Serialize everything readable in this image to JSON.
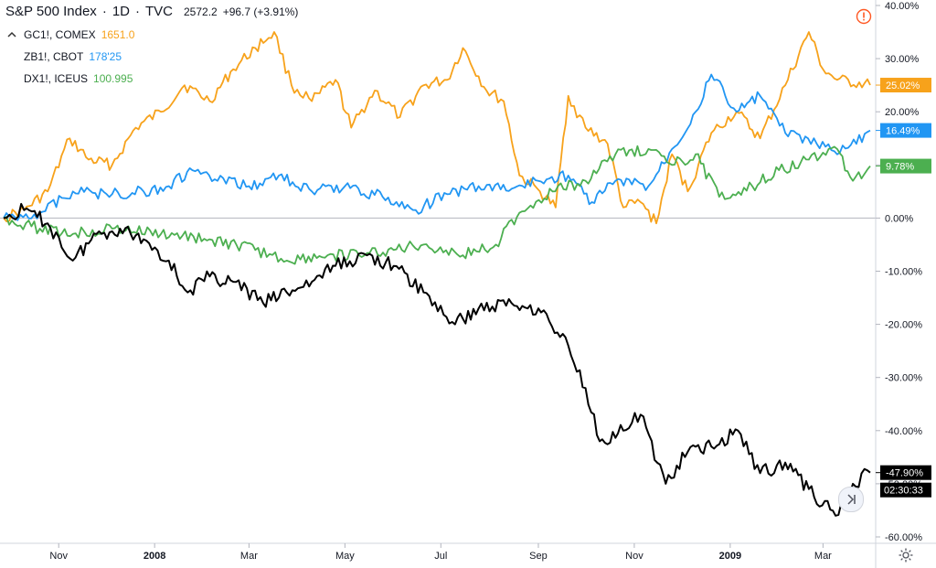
{
  "header": {
    "symbol": "S&P 500 Index",
    "interval": "1D",
    "exchange": "TVC",
    "sep": "·",
    "last": "2572.2",
    "change": "+96.7 (+3.91%)"
  },
  "legend": [
    {
      "name": "GC1!, COMEX",
      "value": "1651.0",
      "color": "#f7a21b"
    },
    {
      "name": "ZB1!, CBOT",
      "value": "178'25",
      "color": "#2196f3"
    },
    {
      "name": "DX1!, ICEUS",
      "value": "100.995",
      "color": "#4caf50"
    }
  ],
  "collapse_icon": "chevron-up-icon",
  "axis_tags": [
    {
      "text": "25.02%",
      "value": 25.02,
      "bg": "#f7a21b",
      "fg": "#131722"
    },
    {
      "text": "16.49%",
      "value": 16.49,
      "bg": "#2196f3",
      "fg": "#ffffff"
    },
    {
      "text": "9.78%",
      "value": 9.78,
      "bg": "#4caf50",
      "fg": "#ffffff"
    },
    {
      "text": "-47.90%",
      "value": -47.9,
      "bg": "#000000",
      "fg": "#ffffff"
    }
  ],
  "countdown": "02:30:33",
  "chart_data": {
    "type": "line",
    "yaxis_side": "right",
    "y_unit": "%",
    "ylim": [
      -61,
      41
    ],
    "yticks": [
      40,
      30,
      20,
      10,
      0,
      -10,
      -20,
      -30,
      -40,
      -50,
      -60
    ],
    "ytick_labels": [
      "40.00%",
      "30.00%",
      "20.00%",
      "10.00%",
      "0.00%",
      "-10.00%",
      "-20.00%",
      "-30.00%",
      "-40.00%",
      "-50.00%",
      "-60.00%"
    ],
    "xlim": [
      "2007-09-27",
      "2009-03-31"
    ],
    "xticks": [
      {
        "label": "Nov",
        "date": "2007-11-01"
      },
      {
        "label": "2008",
        "date": "2008-01-01"
      },
      {
        "label": "Mar",
        "date": "2008-03-01"
      },
      {
        "label": "May",
        "date": "2008-05-01"
      },
      {
        "label": "Jul",
        "date": "2008-07-01"
      },
      {
        "label": "Sep",
        "date": "2008-09-01"
      },
      {
        "label": "Nov",
        "date": "2008-11-01"
      },
      {
        "label": "2009",
        "date": "2009-01-01"
      },
      {
        "label": "Mar",
        "date": "2009-03-01"
      }
    ],
    "zero_line": true,
    "series": [
      {
        "name": "GC1!, COMEX",
        "color": "#f7a21b",
        "points": [
          [
            "2007-09-27",
            0
          ],
          [
            "2007-10-10",
            1.5
          ],
          [
            "2007-10-25",
            5.0
          ],
          [
            "2007-11-08",
            15.0
          ],
          [
            "2007-11-20",
            11.0
          ],
          [
            "2007-12-05",
            10.0
          ],
          [
            "2007-12-20",
            17.0
          ],
          [
            "2008-01-05",
            20.0
          ],
          [
            "2008-01-20",
            25.0
          ],
          [
            "2008-02-05",
            22.0
          ],
          [
            "2008-02-20",
            28.0
          ],
          [
            "2008-03-05",
            32.0
          ],
          [
            "2008-03-17",
            35.0
          ],
          [
            "2008-03-28",
            25.0
          ],
          [
            "2008-04-10",
            22.0
          ],
          [
            "2008-04-25",
            26.0
          ],
          [
            "2008-05-05",
            17.0
          ],
          [
            "2008-05-20",
            24.0
          ],
          [
            "2008-06-05",
            19.0
          ],
          [
            "2008-06-20",
            25.0
          ],
          [
            "2008-07-05",
            26.0
          ],
          [
            "2008-07-15",
            32.0
          ],
          [
            "2008-07-30",
            24.0
          ],
          [
            "2008-08-10",
            22.0
          ],
          [
            "2008-08-20",
            8.0
          ],
          [
            "2008-09-02",
            5.0
          ],
          [
            "2008-09-12",
            2.0
          ],
          [
            "2008-09-20",
            23.0
          ],
          [
            "2008-10-01",
            17.0
          ],
          [
            "2008-10-15",
            14.0
          ],
          [
            "2008-10-25",
            2.0
          ],
          [
            "2008-11-05",
            3.0
          ],
          [
            "2008-11-15",
            -1.0
          ],
          [
            "2008-11-25",
            12.0
          ],
          [
            "2008-12-05",
            5.0
          ],
          [
            "2008-12-20",
            16.0
          ],
          [
            "2009-01-05",
            20.0
          ],
          [
            "2009-01-20",
            15.0
          ],
          [
            "2009-02-05",
            25.0
          ],
          [
            "2009-02-20",
            35.0
          ],
          [
            "2009-03-01",
            28.0
          ],
          [
            "2009-03-10",
            26.0
          ],
          [
            "2009-03-31",
            25.02
          ]
        ]
      },
      {
        "name": "ZB1!, CBOT",
        "color": "#2196f3",
        "points": [
          [
            "2007-09-27",
            0
          ],
          [
            "2007-10-20",
            1.0
          ],
          [
            "2007-11-10",
            5.0
          ],
          [
            "2007-12-05",
            4.5
          ],
          [
            "2007-12-25",
            5.0
          ],
          [
            "2008-01-10",
            6.0
          ],
          [
            "2008-01-25",
            9.0
          ],
          [
            "2008-02-10",
            7.0
          ],
          [
            "2008-03-01",
            6.0
          ],
          [
            "2008-03-20",
            8.0
          ],
          [
            "2008-04-10",
            5.0
          ],
          [
            "2008-05-01",
            6.0
          ],
          [
            "2008-05-25",
            4.0
          ],
          [
            "2008-06-15",
            1.5
          ],
          [
            "2008-07-05",
            4.5
          ],
          [
            "2008-07-25",
            6.0
          ],
          [
            "2008-08-15",
            5.5
          ],
          [
            "2008-09-01",
            7.0
          ],
          [
            "2008-09-20",
            8.0
          ],
          [
            "2008-10-05",
            3.0
          ],
          [
            "2008-10-20",
            7.0
          ],
          [
            "2008-11-10",
            6.0
          ],
          [
            "2008-11-25",
            13.0
          ],
          [
            "2008-12-10",
            20.0
          ],
          [
            "2008-12-20",
            27.0
          ],
          [
            "2009-01-05",
            20.0
          ],
          [
            "2009-01-20",
            23.0
          ],
          [
            "2009-02-05",
            16.0
          ],
          [
            "2009-02-25",
            14.0
          ],
          [
            "2009-03-10",
            12.0
          ],
          [
            "2009-03-31",
            16.49
          ]
        ]
      },
      {
        "name": "DX1!, ICEUS",
        "color": "#4caf50",
        "points": [
          [
            "2007-09-27",
            0
          ],
          [
            "2007-10-20",
            -2.0
          ],
          [
            "2007-11-10",
            -3.0
          ],
          [
            "2007-12-05",
            -2.0
          ],
          [
            "2008-01-05",
            -3.0
          ],
          [
            "2008-02-05",
            -4.0
          ],
          [
            "2008-03-05",
            -6.0
          ],
          [
            "2008-03-25",
            -8.0
          ],
          [
            "2008-04-20",
            -7.0
          ],
          [
            "2008-05-10",
            -7.0
          ],
          [
            "2008-06-01",
            -6.0
          ],
          [
            "2008-06-20",
            -5.0
          ],
          [
            "2008-07-15",
            -7.0
          ],
          [
            "2008-08-05",
            -5.0
          ],
          [
            "2008-08-20",
            1.0
          ],
          [
            "2008-09-10",
            5.0
          ],
          [
            "2008-10-01",
            7.0
          ],
          [
            "2008-10-20",
            12.0
          ],
          [
            "2008-11-10",
            13.0
          ],
          [
            "2008-11-25",
            10.0
          ],
          [
            "2008-12-10",
            12.0
          ],
          [
            "2008-12-25",
            4.0
          ],
          [
            "2009-01-15",
            6.0
          ],
          [
            "2009-02-01",
            9.0
          ],
          [
            "2009-02-20",
            11.0
          ],
          [
            "2009-03-10",
            13.0
          ],
          [
            "2009-03-20",
            7.0
          ],
          [
            "2009-03-31",
            9.78
          ]
        ]
      },
      {
        "name": "S&P 500 Index",
        "color": "#000000",
        "points": [
          [
            "2007-09-27",
            0
          ],
          [
            "2007-10-10",
            1.5
          ],
          [
            "2007-10-25",
            -1.0
          ],
          [
            "2007-11-10",
            -8.0
          ],
          [
            "2007-11-25",
            -3.0
          ],
          [
            "2007-12-10",
            -2.0
          ],
          [
            "2007-12-25",
            -4.0
          ],
          [
            "2008-01-10",
            -8.0
          ],
          [
            "2008-01-22",
            -14.0
          ],
          [
            "2008-02-05",
            -11.0
          ],
          [
            "2008-02-20",
            -12.0
          ],
          [
            "2008-03-10",
            -16.0
          ],
          [
            "2008-03-25",
            -14.0
          ],
          [
            "2008-04-10",
            -12.0
          ],
          [
            "2008-04-25",
            -9.0
          ],
          [
            "2008-05-15",
            -7.0
          ],
          [
            "2008-06-01",
            -9.0
          ],
          [
            "2008-06-20",
            -14.0
          ],
          [
            "2008-07-10",
            -20.0
          ],
          [
            "2008-07-25",
            -17.0
          ],
          [
            "2008-08-15",
            -16.0
          ],
          [
            "2008-09-01",
            -17.0
          ],
          [
            "2008-09-20",
            -24.0
          ],
          [
            "2008-10-01",
            -32.0
          ],
          [
            "2008-10-10",
            -42.0
          ],
          [
            "2008-10-25",
            -40.0
          ],
          [
            "2008-11-05",
            -37.0
          ],
          [
            "2008-11-21",
            -50.0
          ],
          [
            "2008-12-05",
            -44.0
          ],
          [
            "2008-12-20",
            -43.0
          ],
          [
            "2009-01-06",
            -40.0
          ],
          [
            "2009-01-20",
            -48.0
          ],
          [
            "2009-02-05",
            -46.0
          ],
          [
            "2009-02-20",
            -51.0
          ],
          [
            "2009-03-09",
            -56.0
          ],
          [
            "2009-03-20",
            -50.0
          ],
          [
            "2009-03-31",
            -47.9
          ]
        ]
      }
    ]
  }
}
